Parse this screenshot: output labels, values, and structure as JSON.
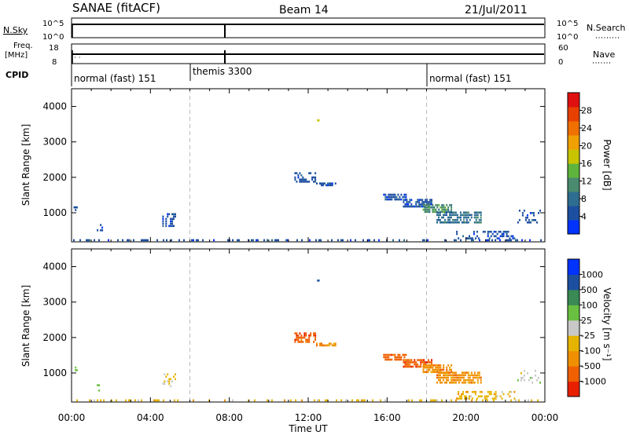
{
  "header": {
    "title": "SANAE (fitACF)",
    "beam": "Beam 14",
    "date": "21/Jul/2011"
  },
  "top_panels": {
    "nsky": {
      "label": "N.Sky",
      "tick_high": "10^5",
      "tick_low": "10^0",
      "right_tick_high": "10^5",
      "right_tick_low": "10^0",
      "right_label": "N.Search"
    },
    "freq": {
      "label_line1": "Freq.",
      "label_line2": "[MHz]",
      "tick_high": "18",
      "tick_low": "8",
      "right_tick_high": "60",
      "right_tick_low": "0",
      "right_label": "Nave"
    },
    "cpid": {
      "label": "CPID",
      "segments": [
        {
          "text": "normal (fast) 151",
          "start_hour": 0
        },
        {
          "text": "themis 3300",
          "start_hour": 6
        },
        {
          "text": "normal (fast) 151",
          "start_hour": 18
        }
      ]
    }
  },
  "chart_data": [
    {
      "type": "heatmap",
      "name": "power",
      "ylabel": "Slant Range [km]",
      "ylim": [
        180,
        4500
      ],
      "yticks": [
        1000,
        2000,
        3000,
        4000
      ],
      "xlim_hours": [
        0,
        24
      ],
      "dashed_lines_hours": [
        6,
        18
      ],
      "colorbar": {
        "label": "Power [dB]",
        "ticks": [
          "4",
          "8",
          "12",
          "16",
          "20",
          "24",
          "28"
        ],
        "colors": [
          "#0033ff",
          "#1d4fa0",
          "#2e6e90",
          "#4a8a6e",
          "#5fb43c",
          "#c8c400",
          "#f0a000",
          "#f07000",
          "#e84000",
          "#e01010"
        ]
      },
      "blobs": [
        {
          "t": [
            0.0,
            24.0
          ],
          "r": [
            200,
            260
          ],
          "level": 1,
          "density": 0.35
        },
        {
          "t": [
            0.1,
            0.3
          ],
          "r": [
            1050,
            1200
          ],
          "level": 1,
          "density": 0.6
        },
        {
          "t": [
            1.2,
            1.6
          ],
          "r": [
            480,
            700
          ],
          "level": 1,
          "density": 0.45
        },
        {
          "t": [
            4.6,
            5.3
          ],
          "r": [
            600,
            1000
          ],
          "level": 1,
          "density": 0.45
        },
        {
          "t": [
            11.3,
            12.4
          ],
          "r": [
            1850,
            2150
          ],
          "level": 1,
          "density": 0.5
        },
        {
          "t": [
            12.4,
            13.5
          ],
          "r": [
            1750,
            1850
          ],
          "level": 1,
          "density": 0.6
        },
        {
          "t": [
            12.45,
            12.55
          ],
          "r": [
            3580,
            3620
          ],
          "level": 5,
          "density": 1.0
        },
        {
          "t": [
            15.8,
            17.0
          ],
          "r": [
            1350,
            1550
          ],
          "level": 1,
          "density": 0.7
        },
        {
          "t": [
            16.8,
            18.3
          ],
          "r": [
            1150,
            1400
          ],
          "level": 1,
          "density": 0.75
        },
        {
          "t": [
            17.8,
            19.3
          ],
          "r": [
            1000,
            1250
          ],
          "level": 3,
          "density": 0.75
        },
        {
          "t": [
            18.5,
            20.8
          ],
          "r": [
            700,
            1050
          ],
          "level": 2,
          "density": 0.7
        },
        {
          "t": [
            19.5,
            22.5
          ],
          "r": [
            250,
            500
          ],
          "level": 1,
          "density": 0.35
        },
        {
          "t": [
            22.6,
            23.8
          ],
          "r": [
            700,
            1100
          ],
          "level": 1,
          "density": 0.2
        }
      ]
    },
    {
      "type": "heatmap",
      "name": "velocity",
      "ylabel": "Slant Range [km]",
      "ylim": [
        180,
        4500
      ],
      "yticks": [
        1000,
        2000,
        3000,
        4000
      ],
      "xlim_hours": [
        0,
        24
      ],
      "dashed_lines_hours": [
        6,
        18
      ],
      "xticks": [
        "00:00",
        "04:00",
        "08:00",
        "12:00",
        "16:00",
        "20:00",
        "00:00"
      ],
      "xlabel": "Time UT",
      "colorbar": {
        "label": "Velocity [m s⁻¹]",
        "ticks": [
          "1000",
          "500",
          "100",
          "25",
          "-25",
          "-100",
          "-500",
          "-1000"
        ],
        "colors": [
          "#0033ff",
          "#1d4fa0",
          "#3a8a55",
          "#6ac040",
          "#c8c8c8",
          "#e6b400",
          "#f09000",
          "#f06000",
          "#e82000"
        ]
      },
      "blobs": [
        {
          "t": [
            0.0,
            24.0
          ],
          "r": [
            200,
            260
          ],
          "level": 5,
          "density": 0.25
        },
        {
          "t": [
            0.1,
            0.3
          ],
          "r": [
            1050,
            1200
          ],
          "level": 3,
          "density": 0.5
        },
        {
          "t": [
            1.2,
            1.6
          ],
          "r": [
            480,
            700
          ],
          "level": 3,
          "density": 0.4
        },
        {
          "t": [
            4.6,
            5.3
          ],
          "r": [
            600,
            1000
          ],
          "level": 5,
          "density": 0.3
        },
        {
          "t": [
            11.3,
            12.4
          ],
          "r": [
            1850,
            2150
          ],
          "level": 7,
          "density": 0.6
        },
        {
          "t": [
            12.4,
            13.5
          ],
          "r": [
            1750,
            1850
          ],
          "level": 6,
          "density": 0.6
        },
        {
          "t": [
            12.45,
            12.55
          ],
          "r": [
            3580,
            3620
          ],
          "level": 1,
          "density": 1.0
        },
        {
          "t": [
            15.8,
            17.0
          ],
          "r": [
            1350,
            1550
          ],
          "level": 7,
          "density": 0.75
        },
        {
          "t": [
            16.8,
            18.3
          ],
          "r": [
            1150,
            1400
          ],
          "level": 7,
          "density": 0.8
        },
        {
          "t": [
            17.8,
            19.3
          ],
          "r": [
            1000,
            1250
          ],
          "level": 6,
          "density": 0.8
        },
        {
          "t": [
            18.5,
            20.8
          ],
          "r": [
            700,
            1050
          ],
          "level": 6,
          "density": 0.75
        },
        {
          "t": [
            19.5,
            22.5
          ],
          "r": [
            250,
            500
          ],
          "level": 5,
          "density": 0.3
        },
        {
          "t": [
            22.6,
            23.8
          ],
          "r": [
            700,
            1100
          ],
          "level": 4,
          "density": 0.2
        }
      ]
    }
  ]
}
